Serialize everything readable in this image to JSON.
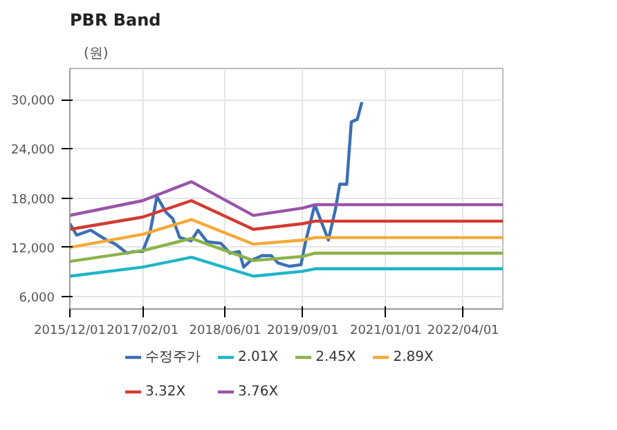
{
  "chart_data": {
    "type": "line",
    "title": "PBR Band",
    "ylabel": "(원)",
    "xlim": [
      "2015-12-01",
      "2022-11-20"
    ],
    "ylim": [
      4500,
      33800
    ],
    "xticks": [
      {
        "value": "2015-12-01",
        "label": "2015/12/01"
      },
      {
        "value": "2017-02-01",
        "label": "2017/02/01"
      },
      {
        "value": "2018-06-01",
        "label": "2018/06/01"
      },
      {
        "value": "2019-09-01",
        "label": "2019/09/01"
      },
      {
        "value": "2021-01-01",
        "label": "2021/01/01"
      },
      {
        "value": "2022-04-01",
        "label": "2022/04/01"
      }
    ],
    "yticks": [
      {
        "value": 6000,
        "label": "6,000"
      },
      {
        "value": 12000,
        "label": "12,000"
      },
      {
        "value": 18000,
        "label": "18,000"
      },
      {
        "value": 24000,
        "label": "24,000"
      },
      {
        "value": 30000,
        "label": "30,000"
      }
    ],
    "grid": true,
    "legend": "bottom",
    "marker": "none",
    "line_style": "solid",
    "series": [
      {
        "name": "수정주가",
        "color": "#3a6fb5",
        "x": [
          "2015-12-01",
          "2016-01-10",
          "2016-04-01",
          "2016-07-03",
          "2016-08-26",
          "2016-11-01",
          "2016-12-12",
          "2017-02-01",
          "2017-03-16",
          "2017-04-26",
          "2017-06-18",
          "2017-07-28",
          "2017-09-07",
          "2017-11-13",
          "2017-12-24",
          "2018-02-15",
          "2018-05-07",
          "2018-06-30",
          "2018-08-23",
          "2018-09-18",
          "2018-10-29",
          "2019-01-04",
          "2019-02-27",
          "2019-04-08",
          "2019-06-14",
          "2019-08-21",
          "2019-09-17",
          "2019-11-10",
          "2020-01-29",
          "2020-03-10",
          "2020-04-05",
          "2020-05-16",
          "2020-06-12",
          "2020-07-17",
          "2020-08-13"
        ],
        "values": [
          14900,
          13500,
          14100,
          12900,
          12400,
          11300,
          11500,
          11500,
          13800,
          18200,
          16300,
          15500,
          13200,
          12800,
          14100,
          12700,
          12500,
          11300,
          11500,
          9600,
          10400,
          11000,
          11000,
          10100,
          9700,
          9900,
          12700,
          17200,
          12900,
          16600,
          19700,
          19700,
          27300,
          27600,
          29700
        ]
      },
      {
        "name": "2.01X",
        "color": "#1fb5c9",
        "x": [
          "2015-12-01",
          "2017-02-01",
          "2017-11-15",
          "2018-11-14",
          "2019-09-01",
          "2019-11-12",
          "2022-11-20"
        ],
        "values": [
          8500,
          9600,
          10800,
          8500,
          9100,
          9400,
          9400
        ]
      },
      {
        "name": "2.45X",
        "color": "#8ab34a",
        "x": [
          "2015-12-01",
          "2017-02-01",
          "2017-11-15",
          "2018-11-14",
          "2019-09-01",
          "2019-11-12",
          "2022-11-20"
        ],
        "values": [
          10300,
          11600,
          13100,
          10400,
          10900,
          11300,
          11300
        ]
      },
      {
        "name": "2.89X",
        "color": "#f5a937",
        "x": [
          "2015-12-01",
          "2017-02-01",
          "2017-11-15",
          "2018-11-14",
          "2019-09-01",
          "2019-11-12",
          "2022-11-20"
        ],
        "values": [
          12000,
          13600,
          15400,
          12400,
          12900,
          13200,
          13200
        ]
      },
      {
        "name": "3.32X",
        "color": "#d43a32",
        "x": [
          "2015-12-01",
          "2017-02-01",
          "2017-11-15",
          "2018-11-14",
          "2019-09-01",
          "2019-11-12",
          "2022-11-20"
        ],
        "values": [
          14200,
          15700,
          17700,
          14200,
          14900,
          15200,
          15200
        ]
      },
      {
        "name": "3.76X",
        "color": "#9a54a8",
        "x": [
          "2015-12-01",
          "2017-02-01",
          "2017-11-15",
          "2018-11-14",
          "2019-09-01",
          "2019-11-12",
          "2022-11-20"
        ],
        "values": [
          15900,
          17700,
          20000,
          15900,
          16800,
          17200,
          17200
        ]
      }
    ]
  }
}
